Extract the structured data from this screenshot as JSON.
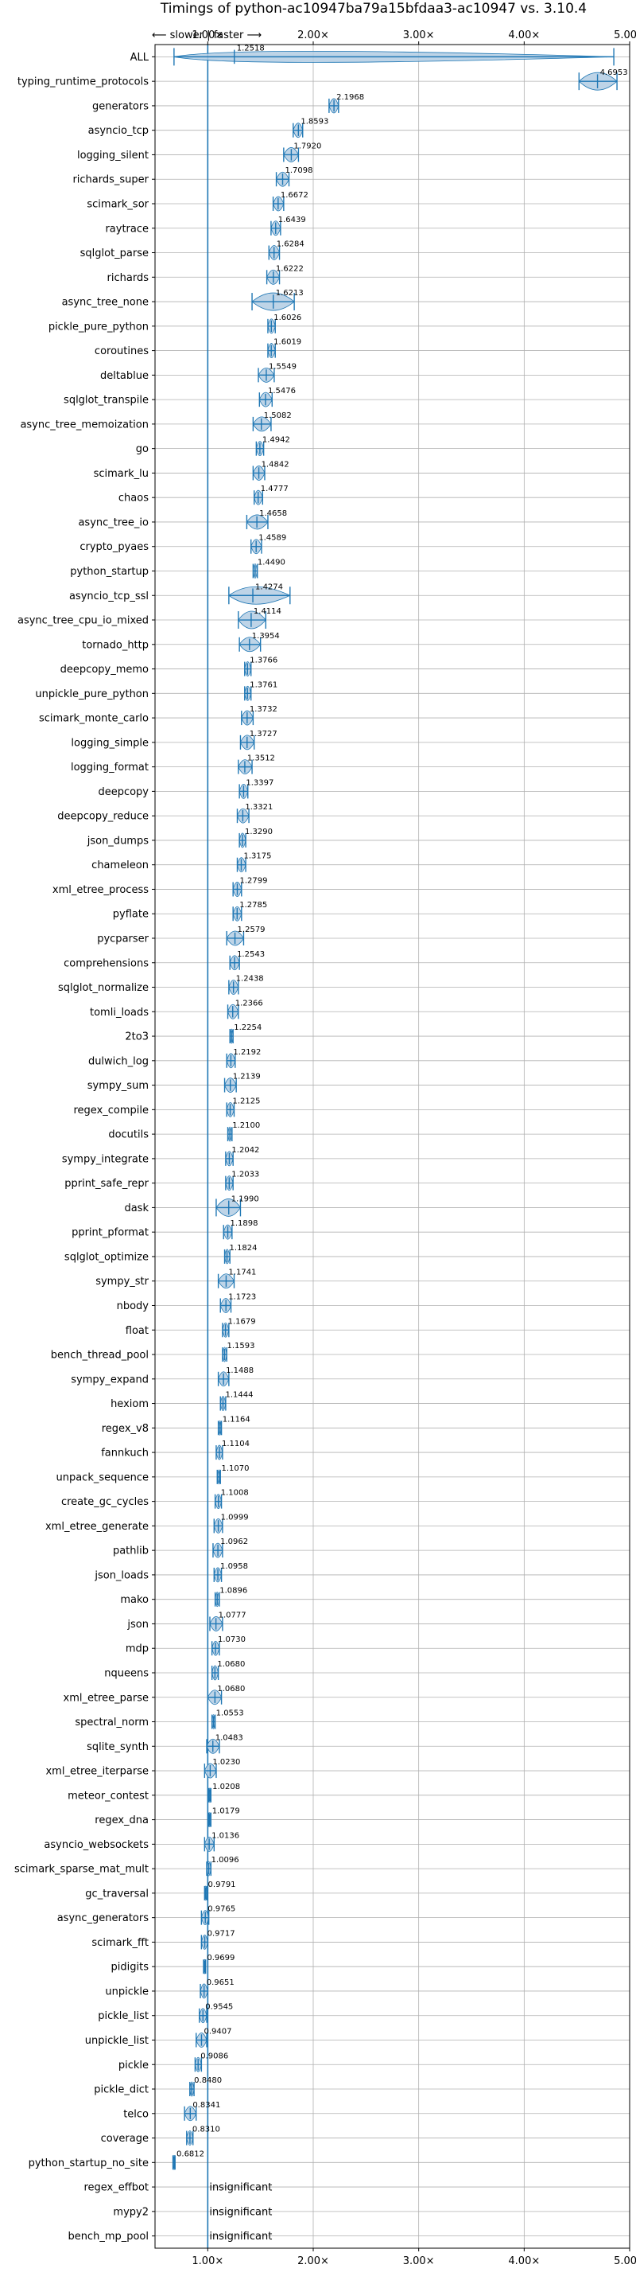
{
  "chart_data": {
    "type": "violin",
    "title": "Timings of python-ac10947ba79a15bfdaa3-ac10947 vs. 3.10.4",
    "direction_label": "⟵ slower | faster ⟶",
    "x_ticks": [
      1.0,
      2.0,
      3.0,
      4.0,
      5.0
    ],
    "x_tick_labels": [
      "1.00×",
      "2.00×",
      "3.00×",
      "4.00×",
      "5.00×"
    ],
    "xlim": [
      0.5,
      5.0
    ],
    "reference_line": 1.0,
    "grid": true,
    "insignificant_label": "insignificant",
    "benchmarks": [
      {
        "name": "ALL",
        "value": 1.2518,
        "label": "1.2518",
        "min": 0.68,
        "max": 4.85
      },
      {
        "name": "typing_runtime_protocols",
        "value": 4.6953,
        "label": "4.6953",
        "min": 4.52,
        "max": 4.88
      },
      {
        "name": "generators",
        "value": 2.1968,
        "label": "2.1968",
        "min": 2.15,
        "max": 2.24
      },
      {
        "name": "asyncio_tcp",
        "value": 1.8593,
        "label": "1.8593",
        "min": 1.81,
        "max": 1.9
      },
      {
        "name": "logging_silent",
        "value": 1.792,
        "label": "1.7920",
        "min": 1.72,
        "max": 1.86
      },
      {
        "name": "richards_super",
        "value": 1.7098,
        "label": "1.7098",
        "min": 1.65,
        "max": 1.77
      },
      {
        "name": "scimark_sor",
        "value": 1.6672,
        "label": "1.6672",
        "min": 1.62,
        "max": 1.72
      },
      {
        "name": "raytrace",
        "value": 1.6439,
        "label": "1.6439",
        "min": 1.6,
        "max": 1.69
      },
      {
        "name": "sqlglot_parse",
        "value": 1.6284,
        "label": "1.6284",
        "min": 1.58,
        "max": 1.68
      },
      {
        "name": "richards",
        "value": 1.6222,
        "label": "1.6222",
        "min": 1.56,
        "max": 1.68
      },
      {
        "name": "async_tree_none",
        "value": 1.6213,
        "label": "1.6213",
        "min": 1.42,
        "max": 1.82
      },
      {
        "name": "pickle_pure_python",
        "value": 1.6026,
        "label": "1.6026",
        "min": 1.57,
        "max": 1.64
      },
      {
        "name": "coroutines",
        "value": 1.6019,
        "label": "1.6019",
        "min": 1.57,
        "max": 1.64
      },
      {
        "name": "deltablue",
        "value": 1.5549,
        "label": "1.5549",
        "min": 1.48,
        "max": 1.63
      },
      {
        "name": "sqlglot_transpile",
        "value": 1.5476,
        "label": "1.5476",
        "min": 1.49,
        "max": 1.61
      },
      {
        "name": "async_tree_memoization",
        "value": 1.5082,
        "label": "1.5082",
        "min": 1.43,
        "max": 1.6
      },
      {
        "name": "go",
        "value": 1.4942,
        "label": "1.4942",
        "min": 1.46,
        "max": 1.53
      },
      {
        "name": "scimark_lu",
        "value": 1.4842,
        "label": "1.4842",
        "min": 1.43,
        "max": 1.54
      },
      {
        "name": "chaos",
        "value": 1.4777,
        "label": "1.4777",
        "min": 1.44,
        "max": 1.52
      },
      {
        "name": "async_tree_io",
        "value": 1.4658,
        "label": "1.4658",
        "min": 1.37,
        "max": 1.57
      },
      {
        "name": "crypto_pyaes",
        "value": 1.4589,
        "label": "1.4589",
        "min": 1.41,
        "max": 1.51
      },
      {
        "name": "python_startup",
        "value": 1.449,
        "label": "1.4490",
        "min": 1.43,
        "max": 1.47
      },
      {
        "name": "asyncio_tcp_ssl",
        "value": 1.4274,
        "label": "1.4274",
        "min": 1.2,
        "max": 1.78
      },
      {
        "name": "async_tree_cpu_io_mixed",
        "value": 1.4114,
        "label": "1.4114",
        "min": 1.29,
        "max": 1.55
      },
      {
        "name": "tornado_http",
        "value": 1.3954,
        "label": "1.3954",
        "min": 1.3,
        "max": 1.5
      },
      {
        "name": "deepcopy_memo",
        "value": 1.3766,
        "label": "1.3766",
        "min": 1.35,
        "max": 1.41
      },
      {
        "name": "unpickle_pure_python",
        "value": 1.3761,
        "label": "1.3761",
        "min": 1.35,
        "max": 1.41
      },
      {
        "name": "scimark_monte_carlo",
        "value": 1.3732,
        "label": "1.3732",
        "min": 1.32,
        "max": 1.43
      },
      {
        "name": "logging_simple",
        "value": 1.3727,
        "label": "1.3727",
        "min": 1.31,
        "max": 1.44
      },
      {
        "name": "logging_format",
        "value": 1.3512,
        "label": "1.3512",
        "min": 1.29,
        "max": 1.42
      },
      {
        "name": "deepcopy",
        "value": 1.3397,
        "label": "1.3397",
        "min": 1.3,
        "max": 1.38
      },
      {
        "name": "deepcopy_reduce",
        "value": 1.3321,
        "label": "1.3321",
        "min": 1.28,
        "max": 1.39
      },
      {
        "name": "json_dumps",
        "value": 1.329,
        "label": "1.3290",
        "min": 1.3,
        "max": 1.36
      },
      {
        "name": "chameleon",
        "value": 1.3175,
        "label": "1.3175",
        "min": 1.28,
        "max": 1.36
      },
      {
        "name": "xml_etree_process",
        "value": 1.2799,
        "label": "1.2799",
        "min": 1.24,
        "max": 1.32
      },
      {
        "name": "pyflate",
        "value": 1.2785,
        "label": "1.2785",
        "min": 1.24,
        "max": 1.32
      },
      {
        "name": "pycparser",
        "value": 1.2579,
        "label": "1.2579",
        "min": 1.18,
        "max": 1.34
      },
      {
        "name": "comprehensions",
        "value": 1.2543,
        "label": "1.2543",
        "min": 1.21,
        "max": 1.3
      },
      {
        "name": "sqlglot_normalize",
        "value": 1.2438,
        "label": "1.2438",
        "min": 1.2,
        "max": 1.29
      },
      {
        "name": "tomli_loads",
        "value": 1.2366,
        "label": "1.2366",
        "min": 1.19,
        "max": 1.29
      },
      {
        "name": "2to3",
        "value": 1.2254,
        "label": "1.2254",
        "min": 1.21,
        "max": 1.24
      },
      {
        "name": "dulwich_log",
        "value": 1.2192,
        "label": "1.2192",
        "min": 1.18,
        "max": 1.26
      },
      {
        "name": "sympy_sum",
        "value": 1.2139,
        "label": "1.2139",
        "min": 1.16,
        "max": 1.27
      },
      {
        "name": "regex_compile",
        "value": 1.2125,
        "label": "1.2125",
        "min": 1.18,
        "max": 1.25
      },
      {
        "name": "docutils",
        "value": 1.21,
        "label": "1.2100",
        "min": 1.19,
        "max": 1.23
      },
      {
        "name": "sympy_integrate",
        "value": 1.2042,
        "label": "1.2042",
        "min": 1.17,
        "max": 1.24
      },
      {
        "name": "pprint_safe_repr",
        "value": 1.2033,
        "label": "1.2033",
        "min": 1.17,
        "max": 1.24
      },
      {
        "name": "dask",
        "value": 1.199,
        "label": "1.1990",
        "min": 1.08,
        "max": 1.31
      },
      {
        "name": "pprint_pformat",
        "value": 1.1898,
        "label": "1.1898",
        "min": 1.15,
        "max": 1.23
      },
      {
        "name": "sqlglot_optimize",
        "value": 1.1824,
        "label": "1.1824",
        "min": 1.16,
        "max": 1.21
      },
      {
        "name": "sympy_str",
        "value": 1.1741,
        "label": "1.1741",
        "min": 1.1,
        "max": 1.25
      },
      {
        "name": "nbody",
        "value": 1.1723,
        "label": "1.1723",
        "min": 1.12,
        "max": 1.22
      },
      {
        "name": "float",
        "value": 1.1679,
        "label": "1.1679",
        "min": 1.14,
        "max": 1.2
      },
      {
        "name": "bench_thread_pool",
        "value": 1.1593,
        "label": "1.1593",
        "min": 1.14,
        "max": 1.18
      },
      {
        "name": "sympy_expand",
        "value": 1.1488,
        "label": "1.1488",
        "min": 1.1,
        "max": 1.2
      },
      {
        "name": "hexiom",
        "value": 1.1444,
        "label": "1.1444",
        "min": 1.12,
        "max": 1.17
      },
      {
        "name": "regex_v8",
        "value": 1.1164,
        "label": "1.1164",
        "min": 1.1,
        "max": 1.13
      },
      {
        "name": "fannkuch",
        "value": 1.1104,
        "label": "1.1104",
        "min": 1.08,
        "max": 1.14
      },
      {
        "name": "unpack_sequence",
        "value": 1.107,
        "label": "1.1070",
        "min": 1.09,
        "max": 1.12
      },
      {
        "name": "create_gc_cycles",
        "value": 1.1008,
        "label": "1.1008",
        "min": 1.07,
        "max": 1.13
      },
      {
        "name": "xml_etree_generate",
        "value": 1.0999,
        "label": "1.0999",
        "min": 1.06,
        "max": 1.14
      },
      {
        "name": "pathlib",
        "value": 1.0962,
        "label": "1.0962",
        "min": 1.05,
        "max": 1.14
      },
      {
        "name": "json_loads",
        "value": 1.0958,
        "label": "1.0958",
        "min": 1.06,
        "max": 1.13
      },
      {
        "name": "mako",
        "value": 1.0896,
        "label": "1.0896",
        "min": 1.07,
        "max": 1.11
      },
      {
        "name": "json",
        "value": 1.0777,
        "label": "1.0777",
        "min": 1.02,
        "max": 1.14
      },
      {
        "name": "mdp",
        "value": 1.073,
        "label": "1.0730",
        "min": 1.04,
        "max": 1.11
      },
      {
        "name": "nqueens",
        "value": 1.068,
        "label": "1.0680",
        "min": 1.04,
        "max": 1.1
      },
      {
        "name": "xml_etree_parse",
        "value": 1.068,
        "label": "1.0680",
        "min": 1.0,
        "max": 1.13
      },
      {
        "name": "spectral_norm",
        "value": 1.0553,
        "label": "1.0553",
        "min": 1.04,
        "max": 1.07
      },
      {
        "name": "sqlite_synth",
        "value": 1.0483,
        "label": "1.0483",
        "min": 0.99,
        "max": 1.11
      },
      {
        "name": "xml_etree_iterparse",
        "value": 1.023,
        "label": "1.0230",
        "min": 0.97,
        "max": 1.08
      },
      {
        "name": "meteor_contest",
        "value": 1.0208,
        "label": "1.0208",
        "min": 1.01,
        "max": 1.03
      },
      {
        "name": "regex_dna",
        "value": 1.0179,
        "label": "1.0179",
        "min": 1.01,
        "max": 1.03
      },
      {
        "name": "asyncio_websockets",
        "value": 1.0136,
        "label": "1.0136",
        "min": 0.97,
        "max": 1.06
      },
      {
        "name": "scimark_sparse_mat_mult",
        "value": 1.0096,
        "label": "1.0096",
        "min": 0.99,
        "max": 1.03
      },
      {
        "name": "gc_traversal",
        "value": 0.9791,
        "label": "0.9791",
        "min": 0.97,
        "max": 0.99
      },
      {
        "name": "async_generators",
        "value": 0.9765,
        "label": "0.9765",
        "min": 0.94,
        "max": 1.01
      },
      {
        "name": "scimark_fft",
        "value": 0.9717,
        "label": "0.9717",
        "min": 0.94,
        "max": 1.0
      },
      {
        "name": "pidigits",
        "value": 0.9699,
        "label": "0.9699",
        "min": 0.96,
        "max": 0.98
      },
      {
        "name": "unpickle",
        "value": 0.9651,
        "label": "0.9651",
        "min": 0.93,
        "max": 1.0
      },
      {
        "name": "pickle_list",
        "value": 0.9545,
        "label": "0.9545",
        "min": 0.92,
        "max": 0.99
      },
      {
        "name": "unpickle_list",
        "value": 0.9407,
        "label": "0.9407",
        "min": 0.89,
        "max": 0.99
      },
      {
        "name": "pickle",
        "value": 0.9086,
        "label": "0.9086",
        "min": 0.88,
        "max": 0.94
      },
      {
        "name": "pickle_dict",
        "value": 0.848,
        "label": "0.8480",
        "min": 0.83,
        "max": 0.87
      },
      {
        "name": "telco",
        "value": 0.8341,
        "label": "0.8341",
        "min": 0.78,
        "max": 0.89
      },
      {
        "name": "coverage",
        "value": 0.831,
        "label": "0.8310",
        "min": 0.8,
        "max": 0.86
      },
      {
        "name": "python_startup_no_site",
        "value": 0.6812,
        "label": "0.6812",
        "min": 0.67,
        "max": 0.69
      },
      {
        "name": "regex_effbot",
        "value": null,
        "label": "insignificant"
      },
      {
        "name": "mypy2",
        "value": null,
        "label": "insignificant"
      },
      {
        "name": "bench_mp_pool",
        "value": null,
        "label": "insignificant"
      }
    ],
    "colors": {
      "violin": "#1f77b4",
      "violin_fill": "#b3cde3",
      "grid": "#b0b0b0",
      "median_marker": "#d62728",
      "reference_line": "#1f77b4"
    }
  }
}
